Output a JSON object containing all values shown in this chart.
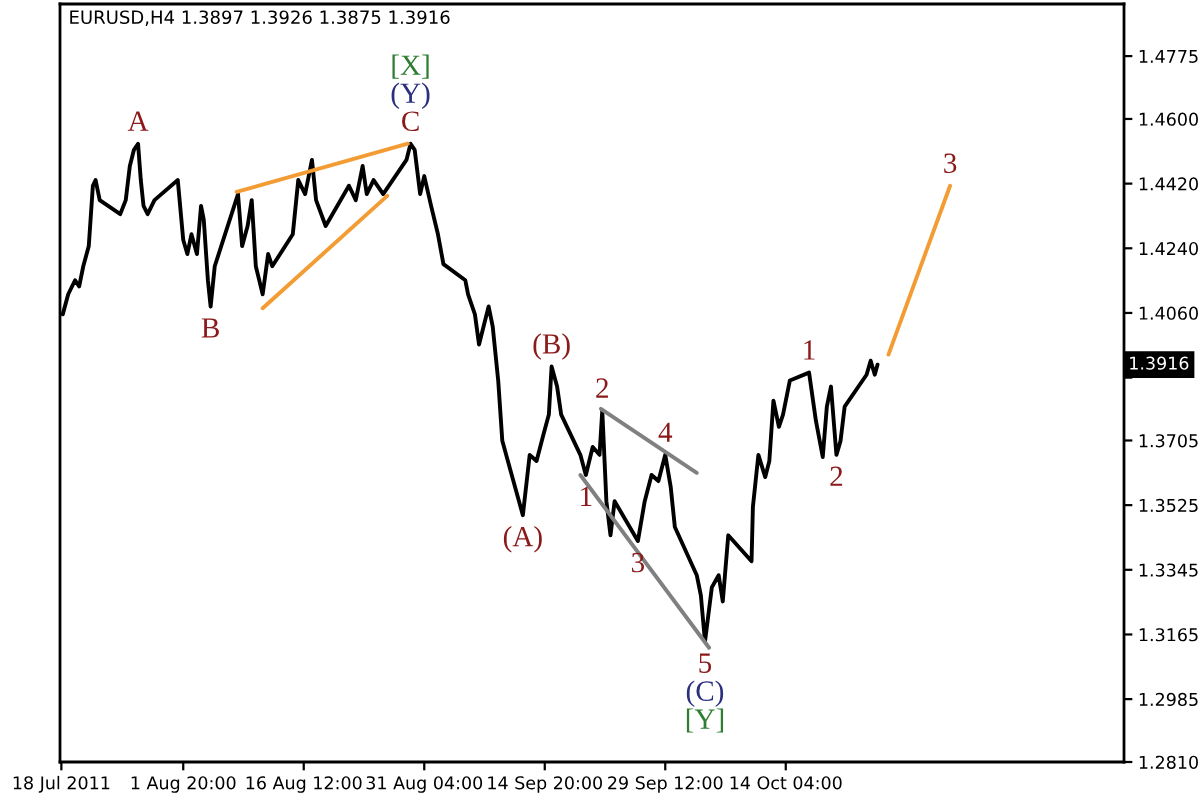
{
  "chart_data": {
    "type": "line",
    "title": "EURUSD,H4 1.3897 1.3926 1.3875 1.3916",
    "line_style": "solid",
    "xlim": [
      "2011-07-17T20:00",
      "2011-11-24T08:00"
    ],
    "xticks": [
      {
        "value": "2011-07-18T00:00",
        "label": "18 Jul 2011"
      },
      {
        "value": "2011-08-01T20:00",
        "label": "1 Aug 20:00"
      },
      {
        "value": "2011-08-16T12:00",
        "label": "16 Aug 12:00"
      },
      {
        "value": "2011-08-31T04:00",
        "label": "31 Aug 04:00"
      },
      {
        "value": "2011-09-14T20:00",
        "label": "14 Sep 20:00"
      },
      {
        "value": "2011-09-29T12:00",
        "label": "29 Sep 12:00"
      },
      {
        "value": "2011-10-14T04:00",
        "label": "14 Oct 04:00"
      }
    ],
    "ylim": [
      1.281,
      1.492
    ],
    "yticks": [
      1.4775,
      {
        "value": 1.46,
        "label": "1.4600"
      },
      {
        "value": 1.442,
        "label": "1.4420"
      },
      {
        "value": 1.424,
        "label": "1.4240"
      },
      {
        "value": 1.406,
        "label": "1.4060"
      },
      {
        "value": 1.388,
        "label": null
      },
      1.3705,
      1.3525,
      1.3345,
      1.3165,
      1.2985,
      {
        "value": 1.281,
        "label": "1.2810"
      }
    ],
    "series": [
      {
        "color": "#000000",
        "x": [
          "2011-07-18T04:00",
          "2011-07-18T20:00",
          "2011-07-19T16:00",
          "2011-07-20T04:00",
          "2011-07-20T16:00",
          "2011-07-21T08:00",
          "2011-07-21T20:00",
          "2011-07-22T04:00",
          "2011-07-22T16:00",
          "2011-07-25T04:00",
          "2011-07-25T20:00",
          "2011-07-26T08:00",
          "2011-07-26T20:00",
          "2011-07-27T08:00",
          "2011-07-27T16:00",
          "2011-07-28T00:00",
          "2011-07-28T12:00",
          "2011-07-29T08:00",
          "2011-08-01T04:00",
          "2011-08-01T20:00",
          "2011-08-02T08:00",
          "2011-08-02T20:00",
          "2011-08-03T12:00",
          "2011-08-04T00:00",
          "2011-08-04T08:00",
          "2011-08-04T20:00",
          "2011-08-05T04:00",
          "2011-08-05T16:00",
          "2011-08-08T12:00",
          "2011-08-09T00:00",
          "2011-08-09T16:00",
          "2011-08-10T04:00",
          "2011-08-10T16:00",
          "2011-08-11T12:00",
          "2011-08-12T04:00",
          "2011-08-12T16:00",
          "2011-08-15T04:00",
          "2011-08-15T20:00",
          "2011-08-16T16:00",
          "2011-08-17T12:00",
          "2011-08-18T00:00",
          "2011-08-19T04:00",
          "2011-08-22T00:00",
          "2011-08-22T20:00",
          "2011-08-23T16:00",
          "2011-08-24T04:00",
          "2011-08-25T00:00",
          "2011-08-26T04:00",
          "2011-08-29T00:00",
          "2011-08-29T12:00",
          "2011-08-30T00:00",
          "2011-08-30T16:00",
          "2011-08-31T04:00",
          "2011-09-01T00:00",
          "2011-09-01T20:00",
          "2011-09-02T12:00",
          "2011-09-05T04:00",
          "2011-09-05T12:00",
          "2011-09-06T08:00",
          "2011-09-06T20:00",
          "2011-09-08T00:00",
          "2011-09-08T12:00",
          "2011-09-09T04:00",
          "2011-09-09T16:00",
          "2011-09-12T04:00",
          "2011-09-13T00:00",
          "2011-09-13T20:00",
          "2011-09-14T16:00",
          "2011-09-15T08:00",
          "2011-09-15T16:00",
          "2011-09-16T08:00",
          "2011-09-16T20:00",
          "2011-09-19T04:00",
          "2011-09-19T20:00",
          "2011-09-20T16:00",
          "2011-09-21T12:00",
          "2011-09-21T20:00",
          "2011-09-22T08:00",
          "2011-09-22T20:00",
          "2011-09-23T08:00",
          "2011-09-26T04:00",
          "2011-09-27T00:00",
          "2011-09-27T20:00",
          "2011-09-28T16:00",
          "2011-09-29T12:00",
          "2011-09-30T04:00",
          "2011-09-30T16:00",
          "2011-10-03T08:00",
          "2011-10-03T20:00",
          "2011-10-04T08:00",
          "2011-10-05T04:00",
          "2011-10-06T00:00",
          "2011-10-06T12:00",
          "2011-10-07T04:00",
          "2011-10-10T00:00",
          "2011-10-10T04:00",
          "2011-10-10T20:00",
          "2011-10-11T16:00",
          "2011-10-12T04:00",
          "2011-10-12T16:00",
          "2011-10-13T08:00",
          "2011-10-13T20:00",
          "2011-10-14T16:00",
          "2011-10-17T00:00",
          "2011-10-17T20:00",
          "2011-10-18T16:00",
          "2011-10-19T04:00",
          "2011-10-19T16:00",
          "2011-10-20T08:00",
          "2011-10-20T20:00",
          "2011-10-21T08:00",
          "2011-10-24T00:00",
          "2011-10-24T12:00",
          "2011-10-25T00:00",
          "2011-10-25T08:00"
        ],
        "values": [
          1.4056,
          1.4112,
          1.4151,
          1.4134,
          1.419,
          1.4246,
          1.4414,
          1.443,
          1.4374,
          1.4335,
          1.4374,
          1.4469,
          1.4514,
          1.4531,
          1.443,
          1.4358,
          1.4335,
          1.4374,
          1.443,
          1.4263,
          1.4224,
          1.4279,
          1.4224,
          1.4358,
          1.4319,
          1.4151,
          1.4078,
          1.419,
          1.4391,
          1.4246,
          1.4302,
          1.4374,
          1.419,
          1.4112,
          1.4224,
          1.419,
          1.4279,
          1.443,
          1.4391,
          1.4486,
          1.4374,
          1.4302,
          1.4414,
          1.4374,
          1.4469,
          1.4391,
          1.443,
          1.4391,
          1.4486,
          1.4531,
          1.4514,
          1.4391,
          1.4441,
          1.4358,
          1.4279,
          1.4196,
          1.4151,
          1.4112,
          1.4056,
          1.3972,
          1.4078,
          1.4022,
          1.3872,
          1.3704,
          1.3497,
          1.3665,
          1.3648,
          1.3721,
          1.3777,
          1.3911,
          1.3855,
          1.3777,
          1.3665,
          1.3609,
          1.3687,
          1.3665,
          1.3788,
          1.3536,
          1.3441,
          1.3536,
          1.3425,
          1.3536,
          1.3609,
          1.3592,
          1.3665,
          1.3575,
          1.3464,
          1.333,
          1.3274,
          1.3145,
          1.3296,
          1.333,
          1.3257,
          1.3441,
          1.3369,
          1.352,
          1.3665,
          1.3603,
          1.3648,
          1.3816,
          1.3743,
          1.3777,
          1.3872,
          1.3894,
          1.376,
          1.3659,
          1.3799,
          1.3855,
          1.3665,
          1.3704,
          1.3799,
          1.3888,
          1.3927,
          1.3888,
          1.3916
        ]
      },
      {
        "color": "#f39c34",
        "x": [
          "2011-08-08T08:00",
          "2011-08-29T04:00"
        ],
        "values": [
          1.4397,
          1.4531
        ]
      },
      {
        "color": "#f39c34",
        "x": [
          "2011-08-11T12:00",
          "2011-08-26T16:00"
        ],
        "values": [
          1.4073,
          1.4386
        ]
      },
      {
        "color": "#808080",
        "x": [
          "2011-09-21T16:00",
          "2011-10-03T08:00"
        ],
        "values": [
          1.3793,
          1.3615
        ]
      },
      {
        "color": "#808080",
        "x": [
          "2011-09-19T04:00",
          "2011-10-04T20:00"
        ],
        "values": [
          1.3609,
          1.3128
        ]
      },
      {
        "color": "#f39c34",
        "x": [
          "2011-10-26T16:00",
          "2011-11-03T04:00"
        ],
        "values": [
          1.3944,
          1.4414
        ]
      }
    ],
    "annotations": [
      {
        "text": "A",
        "x": "2011-07-27T08:00",
        "y": 1.4531
      },
      {
        "text": "B",
        "x": "2011-08-05T04:00",
        "y": 1.4078
      },
      {
        "text": "C",
        "x": "2011-08-29T12:00",
        "y": 1.4531
      },
      {
        "text": "(Y)",
        "x": "2011-08-29T12:00",
        "y": 1.4531
      },
      {
        "text": "[X]",
        "x": "2011-08-29T12:00",
        "y": 1.4531
      },
      {
        "text": "(A)",
        "x": "2011-09-12T04:00",
        "y": 1.3497
      },
      {
        "text": "(B)",
        "x": "2011-09-15T16:00",
        "y": 1.3911
      },
      {
        "text": "1",
        "x": "2011-09-19T20:00",
        "y": 1.3609
      },
      {
        "text": "2",
        "x": "2011-09-21T20:00",
        "y": 1.3788
      },
      {
        "text": "3",
        "x": "2011-09-26T04:00",
        "y": 1.3425
      },
      {
        "text": "4",
        "x": "2011-09-29T12:00",
        "y": 1.3665
      },
      {
        "text": "5",
        "x": "2011-10-04T08:00",
        "y": 1.3145
      },
      {
        "text": "(C)",
        "x": "2011-10-04T08:00",
        "y": 1.3145
      },
      {
        "text": "[Y]",
        "x": "2011-10-04T08:00",
        "y": 1.3145
      },
      {
        "text": "1",
        "x": "2011-10-17T00:00",
        "y": 1.3894
      },
      {
        "text": "2",
        "x": "2011-10-20T08:00",
        "y": 1.3665
      },
      {
        "text": "3",
        "x": "2011-11-03T04:00",
        "y": 1.4414
      },
      {
        "text": "1.3916",
        "y": 1.3916
      }
    ]
  }
}
